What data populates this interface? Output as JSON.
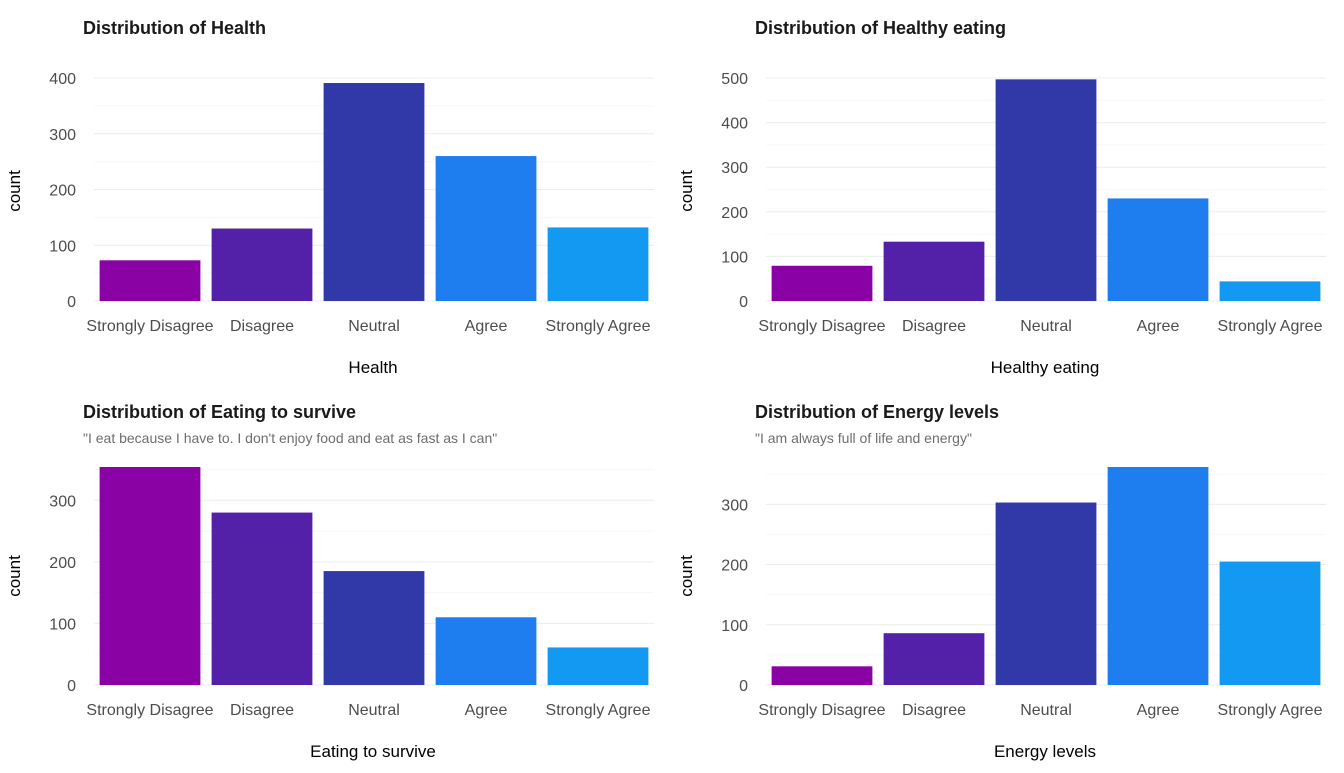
{
  "colors": [
    "#8a02a3",
    "#5321a8",
    "#3138a8",
    "#1e7ef0",
    "#1399f2"
  ],
  "chart_data": [
    {
      "type": "bar",
      "title": "Distribution of Health",
      "subtitle": "",
      "xlabel": "Health",
      "ylabel": "count",
      "categories": [
        "Strongly Disagree",
        "Disagree",
        "Neutral",
        "Agree",
        "Strongly Agree"
      ],
      "values": [
        73,
        130,
        391,
        260,
        132
      ],
      "ylim": [
        0,
        400
      ],
      "yticks": [
        0,
        100,
        200,
        300,
        400
      ],
      "grid": true,
      "legend": "none"
    },
    {
      "type": "bar",
      "title": "Distribution of Healthy eating",
      "subtitle": "",
      "xlabel": "Healthy eating",
      "ylabel": "count",
      "categories": [
        "Strongly Disagree",
        "Disagree",
        "Neutral",
        "Agree",
        "Strongly Agree"
      ],
      "values": [
        79,
        133,
        497,
        230,
        44
      ],
      "ylim": [
        0,
        500
      ],
      "yticks": [
        0,
        100,
        200,
        300,
        400,
        500
      ],
      "grid": true,
      "legend": "none"
    },
    {
      "type": "bar",
      "title": "Distribution of Eating to survive",
      "subtitle": "\"I eat because I have to. I don't enjoy food and eat as fast as I can\"",
      "xlabel": "Eating to survive",
      "ylabel": "count",
      "categories": [
        "Strongly Disagree",
        "Disagree",
        "Neutral",
        "Agree",
        "Strongly Agree"
      ],
      "values": [
        354,
        280,
        185,
        110,
        61
      ],
      "ylim": [
        0,
        354
      ],
      "yticks": [
        0,
        100,
        200,
        300
      ],
      "grid": true,
      "legend": "none"
    },
    {
      "type": "bar",
      "title": "Distribution of Energy levels",
      "subtitle": "\"I am always full of life and energy\"",
      "xlabel": "Energy levels",
      "ylabel": "count",
      "categories": [
        "Strongly Disagree",
        "Disagree",
        "Neutral",
        "Agree",
        "Strongly Agree"
      ],
      "values": [
        31,
        86,
        303,
        362,
        205
      ],
      "ylim": [
        0,
        362
      ],
      "yticks": [
        0,
        100,
        200,
        300
      ],
      "grid": true,
      "legend": "none"
    }
  ]
}
